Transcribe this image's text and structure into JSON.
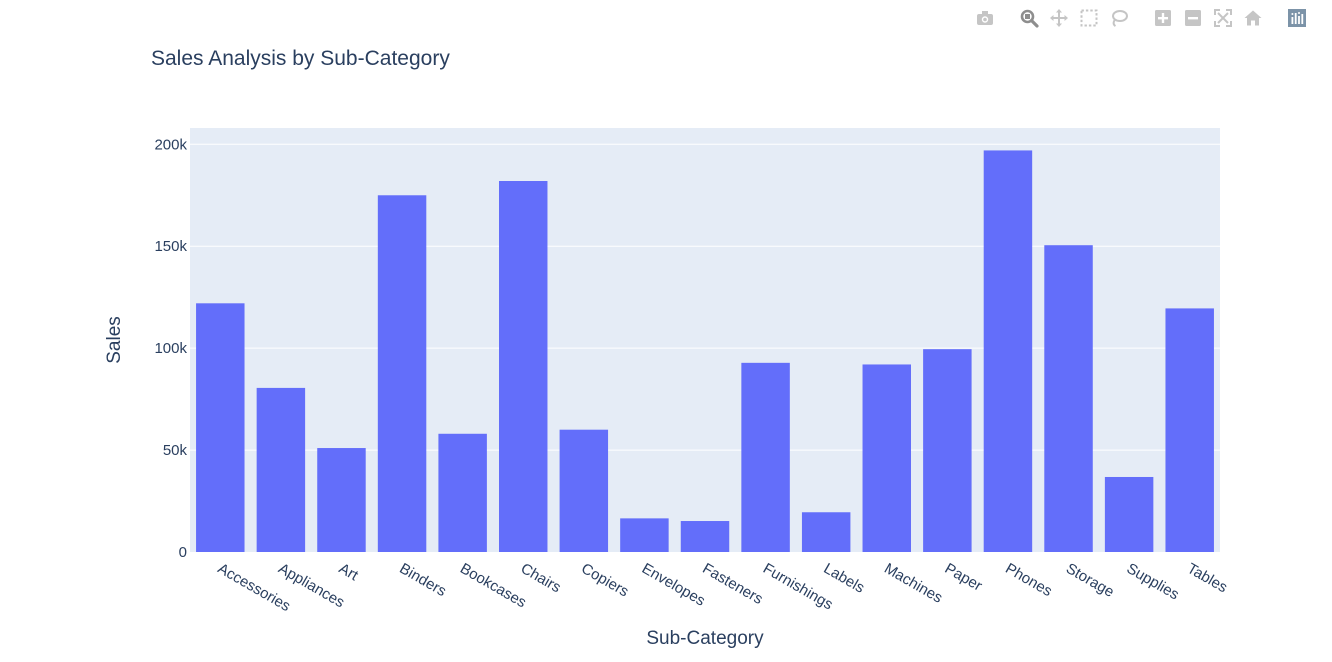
{
  "toolbar": {
    "buttons": [
      {
        "name": "camera-icon",
        "title": "Download plot as a png"
      },
      {
        "name": "zoom-icon",
        "title": "Zoom"
      },
      {
        "name": "pan-icon",
        "title": "Pan"
      },
      {
        "name": "box-select-icon",
        "title": "Box Select"
      },
      {
        "name": "lasso-select-icon",
        "title": "Lasso Select"
      },
      {
        "name": "zoom-in-icon",
        "title": "Zoom in"
      },
      {
        "name": "zoom-out-icon",
        "title": "Zoom out"
      },
      {
        "name": "autoscale-icon",
        "title": "Autoscale"
      },
      {
        "name": "reset-axes-icon",
        "title": "Reset axes"
      },
      {
        "name": "plotly-logo-icon",
        "title": "Produced with Plotly"
      }
    ]
  },
  "colors": {
    "bar": "#636efa",
    "plot_bg": "#e5ecf6",
    "text": "#2a3f5f",
    "icon": "#c5c5c5",
    "icon_active": "#8e8e8e",
    "logo": "#7c93a8"
  },
  "chart_data": {
    "type": "bar",
    "title": "Sales Analysis by Sub-Category",
    "xlabel": "Sub-Category",
    "ylabel": "Sales",
    "categories": [
      "Accessories",
      "Appliances",
      "Art",
      "Binders",
      "Bookcases",
      "Chairs",
      "Copiers",
      "Envelopes",
      "Fasteners",
      "Furnishings",
      "Labels",
      "Machines",
      "Paper",
      "Phones",
      "Storage",
      "Supplies",
      "Tables"
    ],
    "values": [
      122000,
      80500,
      51000,
      175000,
      58000,
      182000,
      60000,
      16500,
      15200,
      92800,
      19500,
      92000,
      99500,
      197000,
      150500,
      36800,
      119500
    ],
    "ylim": [
      0,
      208000
    ],
    "yticks": [
      0,
      50000,
      100000,
      150000,
      200000
    ],
    "ytick_labels": [
      "0",
      "50k",
      "100k",
      "150k",
      "200k"
    ],
    "grid": true
  }
}
